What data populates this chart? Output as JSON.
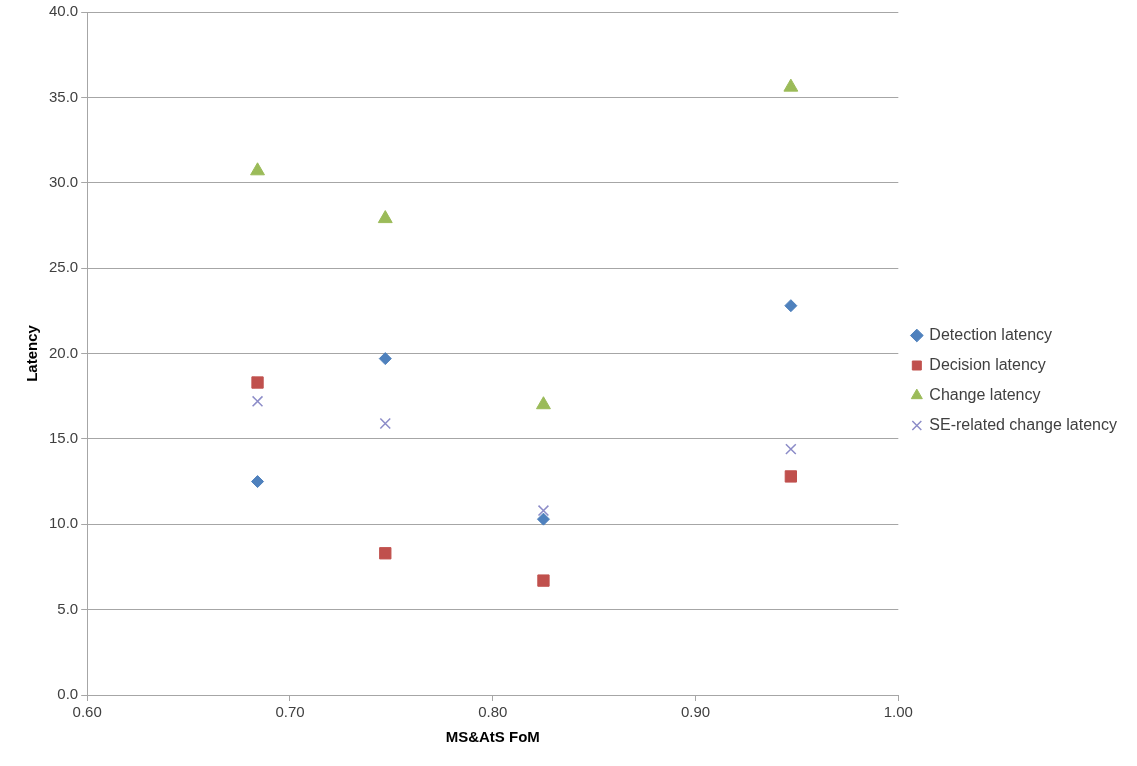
{
  "chart_data": {
    "type": "scatter",
    "xlabel": "MS&AtS FoM",
    "ylabel": "Latency",
    "x": [
      0.684,
      0.747,
      0.825,
      0.947
    ],
    "series": [
      {
        "name": "Detection latency",
        "color": "#4f81bd",
        "marker": "diamond",
        "values": [
          12.5,
          19.7,
          10.3,
          22.8
        ]
      },
      {
        "name": "Decision latency",
        "color": "#c0504d",
        "marker": "square",
        "values": [
          18.3,
          8.3,
          6.7,
          12.8
        ]
      },
      {
        "name": "Change latency",
        "color": "#9bbb59",
        "marker": "triangle",
        "values": [
          30.7,
          27.9,
          17.0,
          35.6
        ]
      },
      {
        "name": "SE-related change latency",
        "color": "#8c8cc8",
        "marker": "cross",
        "values": [
          17.2,
          15.9,
          10.8,
          14.4
        ]
      }
    ],
    "xlim": [
      0.6,
      1.0
    ],
    "xticks": [
      {
        "value": 0.6,
        "label": "0.60"
      },
      {
        "value": 0.7,
        "label": "0.70"
      },
      {
        "value": 0.8,
        "label": "0.80"
      },
      {
        "value": 0.9,
        "label": "0.90"
      },
      {
        "value": 1.0,
        "label": "1.00"
      }
    ],
    "ylim": [
      0,
      40
    ],
    "yticks": [
      {
        "value": 0,
        "label": "0.0"
      },
      {
        "value": 5,
        "label": "5.0"
      },
      {
        "value": 10,
        "label": "10.0"
      },
      {
        "value": 15,
        "label": "15.0"
      },
      {
        "value": 20,
        "label": "20.0"
      },
      {
        "value": 25,
        "label": "25.0"
      },
      {
        "value": 30,
        "label": "30.0"
      },
      {
        "value": 35,
        "label": "35.0"
      },
      {
        "value": 40,
        "label": "40.0"
      }
    ],
    "grid": "y",
    "legend": "right"
  }
}
